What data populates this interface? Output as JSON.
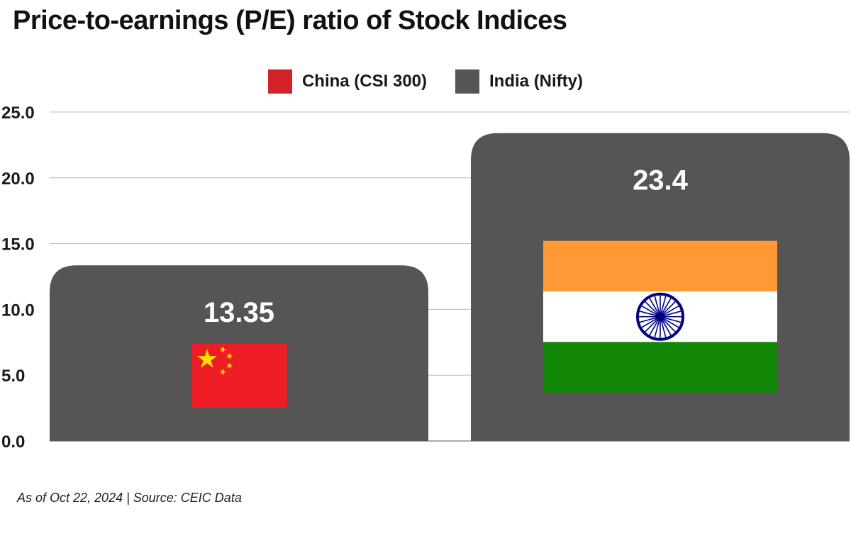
{
  "chart_data": {
    "type": "bar",
    "title": "Price-to-earnings (P/E) ratio of Stock Indices",
    "categories": [
      "China (CSI 300)",
      "India (Nifty)"
    ],
    "values": [
      13.35,
      23.4
    ],
    "data_labels": [
      "13.35",
      "23.4"
    ],
    "ylim": [
      0,
      25
    ],
    "yticks": [
      "0.0",
      "5.0",
      "10.0",
      "15.0",
      "20.0",
      "25.0"
    ],
    "grid": true,
    "legend": {
      "placement": "top-center",
      "entries": [
        {
          "label": "China (CSI 300)",
          "color": "#d42027"
        },
        {
          "label": "India (Nifty)",
          "color": "#555555"
        }
      ]
    },
    "bar_color": "#555555",
    "flags": [
      "china-flag-icon",
      "india-flag-icon"
    ],
    "note": "As of Oct 22, 2024 | Source: CEIC Data"
  }
}
